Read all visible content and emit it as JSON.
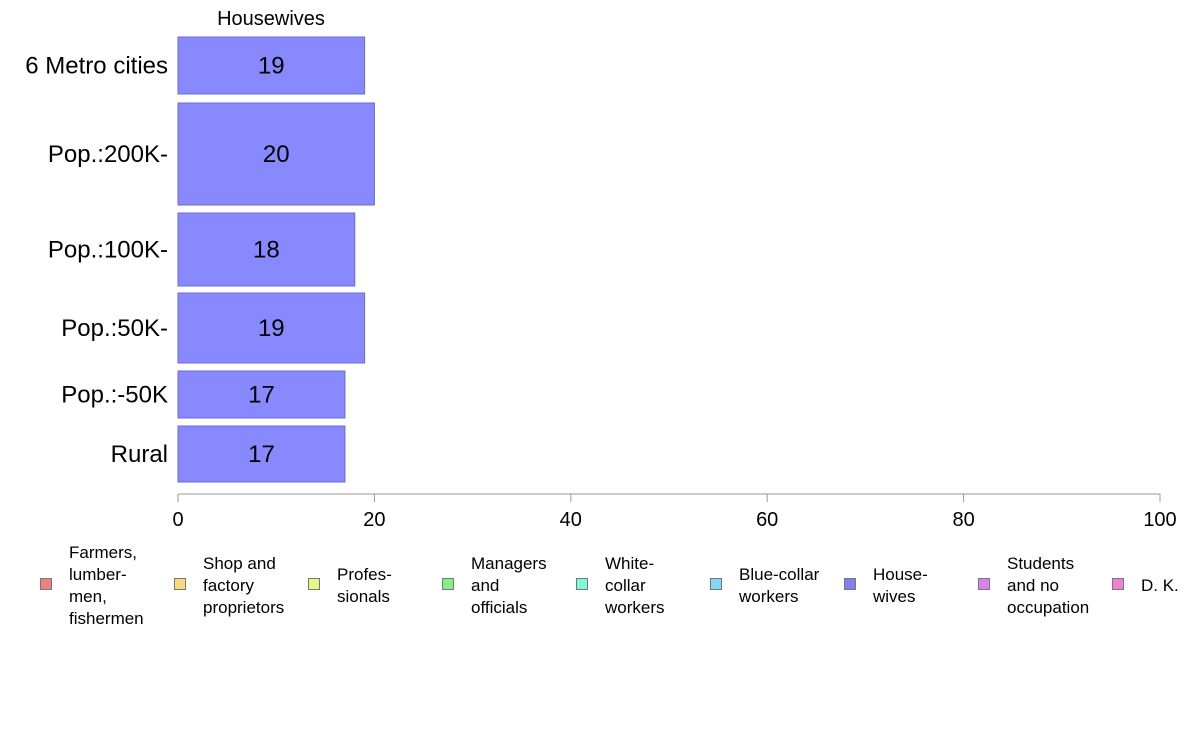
{
  "chart_data": {
    "type": "bar",
    "orientation": "horizontal",
    "title": "Housewives",
    "categories": [
      "6 Metro cities",
      "Pop.:200K-",
      "Pop.:100K-",
      "Pop.:50K-",
      "Pop.:-50K",
      "Rural"
    ],
    "values": [
      19,
      20,
      18,
      19,
      17,
      17
    ],
    "xlim": [
      0,
      100
    ],
    "xticks": [
      "0",
      "20",
      "40",
      "60",
      "80",
      "100"
    ],
    "bar_color": "#8888ff",
    "grid": false,
    "legend_placement": "bottom",
    "legend": [
      {
        "label": "Farmers,\nlumber-\nmen,\nfishermen",
        "color": "#f08080"
      },
      {
        "label": "Shop and\nfactory\nproprietors",
        "color": "#f8d880"
      },
      {
        "label": "Profes-\nsionals",
        "color": "#e0f880"
      },
      {
        "label": "Managers\nand\nofficials",
        "color": "#80f080"
      },
      {
        "label": "White-\ncollar\nworkers",
        "color": "#80f8d8"
      },
      {
        "label": "Blue-collar\nworkers",
        "color": "#80d8f8"
      },
      {
        "label": "House-\nwives",
        "color": "#8080f0"
      },
      {
        "label": "Students\nand no\noccupation",
        "color": "#d880f0"
      },
      {
        "label": "D. K.",
        "color": "#f080d0"
      }
    ]
  }
}
